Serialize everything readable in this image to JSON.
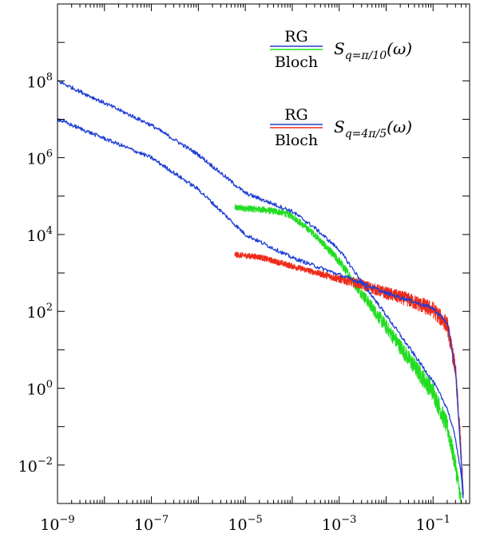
{
  "chart_data": {
    "type": "line",
    "title": "",
    "xlabel": "",
    "ylabel": "",
    "xscale": "log",
    "yscale": "log",
    "xlim": [
      1e-09,
      0.6
    ],
    "ylim": [
      0.001,
      10000000000.0
    ],
    "grid": false,
    "legend_position": "top-right",
    "x_tick_labels": [
      {
        "value": 1e-09,
        "base": "10",
        "exp": "−9"
      },
      {
        "value": 1e-07,
        "base": "10",
        "exp": "−7"
      },
      {
        "value": 1e-05,
        "base": "10",
        "exp": "−5"
      },
      {
        "value": 0.001,
        "base": "10",
        "exp": "−3"
      },
      {
        "value": 0.1,
        "base": "10",
        "exp": "−1"
      }
    ],
    "y_tick_labels": [
      {
        "value": 0.01,
        "base": "10",
        "exp": "−2"
      },
      {
        "value": 1,
        "base": "10",
        "exp": "0"
      },
      {
        "value": 100,
        "base": "10",
        "exp": "2"
      },
      {
        "value": 10000,
        "base": "10",
        "exp": "4"
      },
      {
        "value": 1000000,
        "base": "10",
        "exp": "6"
      },
      {
        "value": 100000000,
        "base": "10",
        "exp": "8"
      }
    ],
    "legend": [
      {
        "numerator": "RG",
        "denominator": "Bloch",
        "numerator_color": "#1f3fd4",
        "denominator_color": "#22dd22",
        "label_main": "S",
        "label_sub": "q=π/10",
        "label_tail": "(ω)"
      },
      {
        "numerator": "RG",
        "denominator": "Bloch",
        "numerator_color": "#1f3fd4",
        "denominator_color": "#ee2a1a",
        "label_main": "S",
        "label_sub": "q=4π/5",
        "label_tail": "(ω)"
      }
    ],
    "series": [
      {
        "id": "rg-q-pi-10",
        "color": "#1f3fd4",
        "noise": 0.05,
        "points": [
          [
            1e-09,
            100000000.0
          ],
          [
            1e-07,
            7000000.0
          ],
          [
            1e-06,
            1200000.0
          ],
          [
            1e-05,
            120000.0
          ],
          [
            0.0001,
            40000.0
          ],
          [
            0.0003,
            15000.0
          ],
          [
            0.001,
            4000.0
          ],
          [
            0.003,
            600.0
          ],
          [
            0.01,
            80
          ],
          [
            0.03,
            12
          ],
          [
            0.1,
            1.5
          ],
          [
            0.2,
            0.3
          ],
          [
            0.3,
            0.05
          ],
          [
            0.4,
            0.005
          ],
          [
            0.45,
            0.001
          ]
        ]
      },
      {
        "id": "rg-q-4pi-5",
        "color": "#1f3fd4",
        "noise": 0.05,
        "points": [
          [
            1e-09,
            10000000.0
          ],
          [
            1e-07,
            1000000.0
          ],
          [
            1e-06,
            150000.0
          ],
          [
            1e-05,
            10000.0
          ],
          [
            0.0001,
            2500.0
          ],
          [
            0.001,
            900
          ],
          [
            0.003,
            550
          ],
          [
            0.01,
            300
          ],
          [
            0.03,
            200
          ],
          [
            0.1,
            120
          ],
          [
            0.2,
            50
          ],
          [
            0.3,
            3
          ],
          [
            0.4,
            0.01
          ],
          [
            0.45,
            0.001
          ]
        ]
      },
      {
        "id": "bloch-q-pi-10",
        "color": "#22dd22",
        "noise": 0.25,
        "points": [
          [
            6e-06,
            50000.0
          ],
          [
            2e-05,
            45000.0
          ],
          [
            6e-05,
            38000.0
          ],
          [
            0.0001,
            30000.0
          ],
          [
            0.0003,
            10000.0
          ],
          [
            0.001,
            2000.0
          ],
          [
            0.003,
            300
          ],
          [
            0.01,
            40
          ],
          [
            0.03,
            6
          ],
          [
            0.1,
            0.8
          ],
          [
            0.2,
            0.1
          ],
          [
            0.3,
            0.01
          ],
          [
            0.4,
            0.001
          ]
        ]
      },
      {
        "id": "bloch-q-4pi-5",
        "color": "#ee2a1a",
        "noise": 0.22,
        "points": [
          [
            6e-06,
            3000.0
          ],
          [
            2e-05,
            2600.0
          ],
          [
            0.0001,
            1500.0
          ],
          [
            0.001,
            700
          ],
          [
            0.003,
            500
          ],
          [
            0.01,
            300
          ],
          [
            0.03,
            200
          ],
          [
            0.1,
            110
          ],
          [
            0.2,
            45
          ],
          [
            0.3,
            3
          ],
          [
            0.38,
            0.05
          ],
          [
            0.45,
            0.001
          ]
        ]
      }
    ]
  }
}
